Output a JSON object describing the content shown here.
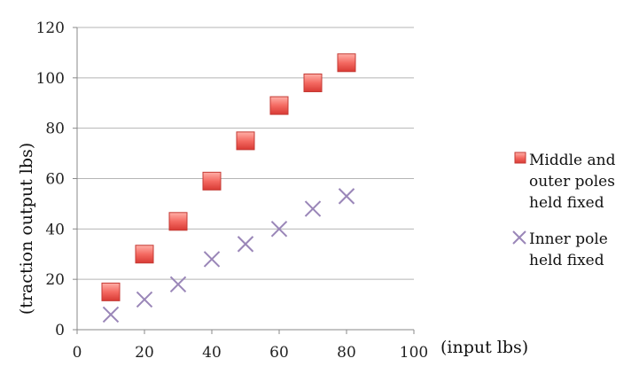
{
  "chart_data": {
    "type": "scatter",
    "title": "",
    "xlabel": "(input lbs)",
    "ylabel": "(traction output lbs)",
    "xlim": [
      0,
      100
    ],
    "ylim": [
      0,
      120
    ],
    "xticks": [
      0,
      20,
      40,
      60,
      80,
      100
    ],
    "yticks": [
      0,
      20,
      40,
      60,
      80,
      100,
      120
    ],
    "grid": "horizontal",
    "legend_position": "right",
    "series": [
      {
        "name": "Middle and outer poles held fixed",
        "name_lines": [
          "Middle and",
          "outer poles",
          "held fixed"
        ],
        "marker": "square",
        "color": "#f06060",
        "x": [
          10,
          20,
          30,
          40,
          50,
          60,
          70,
          80
        ],
        "y": [
          15,
          30,
          43,
          59,
          75,
          89,
          98,
          106
        ]
      },
      {
        "name": "Inner pole held fixed",
        "name_lines": [
          "Inner pole",
          "held fixed"
        ],
        "marker": "x",
        "color": "#9a86b8",
        "x": [
          10,
          20,
          30,
          40,
          50,
          60,
          70,
          80
        ],
        "y": [
          6,
          12,
          18,
          28,
          34,
          40,
          48,
          53
        ]
      }
    ]
  }
}
